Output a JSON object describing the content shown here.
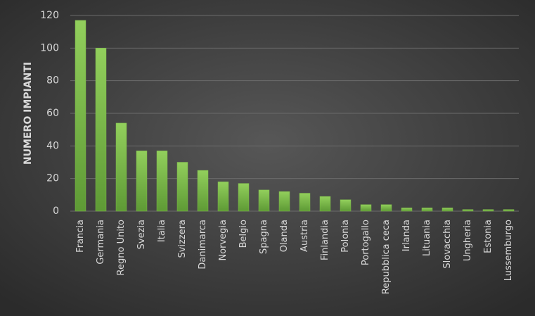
{
  "chart_data": {
    "type": "bar",
    "y_label": "NUMERO IMPIANTI",
    "categories": [
      "Francia",
      "Germania",
      "Regno Unito",
      "Svezia",
      "Italia",
      "Svizzera",
      "Danimarca",
      "Norvegia",
      "Belgio",
      "Spagna",
      "Olanda",
      "Austria",
      "Finlandia",
      "Polonia",
      "Portogallo",
      "Repubblica ceca",
      "Irlanda",
      "Lituania",
      "Slovacchia",
      "Ungheria",
      "Estonia",
      "Lussemburgo"
    ],
    "values": [
      117,
      100,
      54,
      37,
      37,
      30,
      25,
      18,
      17,
      13,
      12,
      11,
      9,
      7,
      4,
      4,
      2,
      2,
      2,
      1,
      1,
      1
    ],
    "color": "#7cb84a",
    "ylim": [
      0,
      120
    ],
    "yticks": [
      0,
      20,
      40,
      60,
      80,
      100,
      120
    ],
    "grid": true
  }
}
